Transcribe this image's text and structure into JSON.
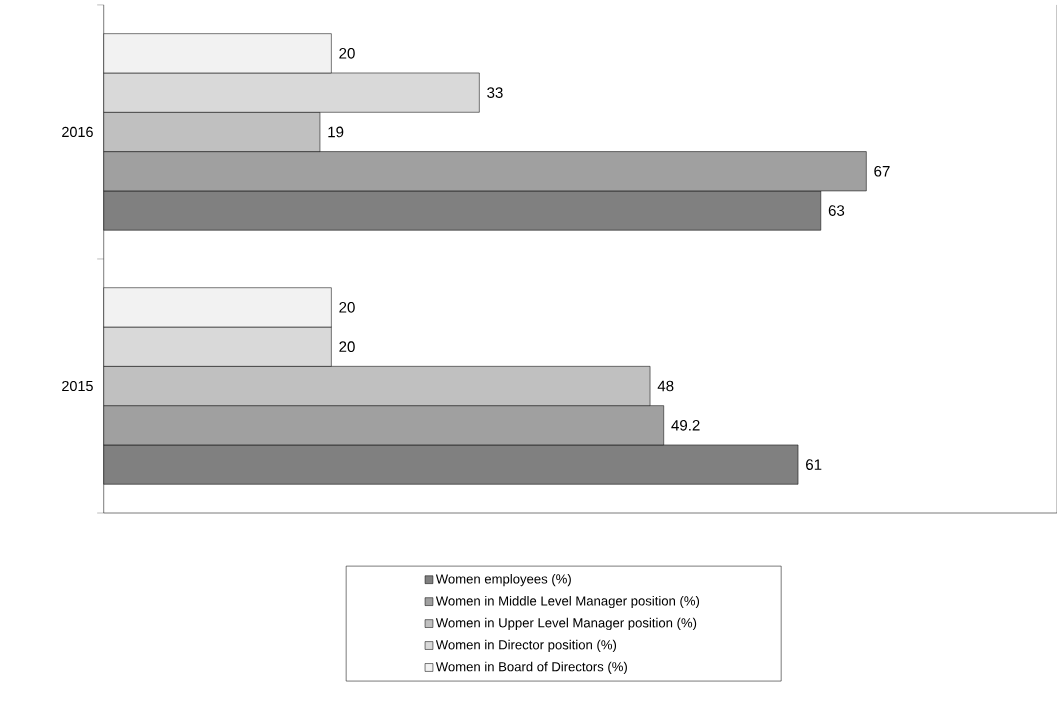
{
  "chart_data": {
    "type": "bar",
    "orientation": "horizontal",
    "categories": [
      "2016",
      "2015"
    ],
    "data_labels": true,
    "legend": "bottom",
    "series": [
      {
        "name": "Women employees (%)",
        "color": "#808080",
        "values": [
          63,
          61
        ]
      },
      {
        "name": "Women in Middle Level Manager position (%)",
        "color": "#a0a0a0",
        "values": [
          67,
          49.2
        ]
      },
      {
        "name": "Women in Upper Level Manager position (%)",
        "color": "#c0c0c0",
        "values": [
          19,
          48
        ]
      },
      {
        "name": "Women in Director position (%)",
        "color": "#d9d9d9",
        "values": [
          33,
          20
        ]
      },
      {
        "name": "Women in Board of Directors (%)",
        "color": "#f2f2f2",
        "values": [
          20,
          20
        ]
      }
    ]
  }
}
